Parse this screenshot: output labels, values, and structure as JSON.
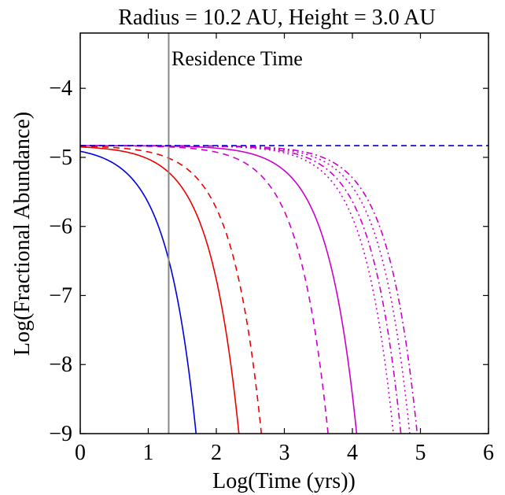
{
  "chart_data": {
    "type": "line",
    "title": "Radius = 10.2 AU, Height = 3.0 AU",
    "xlabel": "Log(Time (yrs))",
    "ylabel": "Log(Fractional Abundance)",
    "xlim": [
      0,
      6
    ],
    "ylim": [
      -9,
      -3.2
    ],
    "xticks": [
      "0",
      "1",
      "2",
      "3",
      "4",
      "5",
      "6"
    ],
    "yticks": [
      "−4",
      "−5",
      "−6",
      "−7",
      "−8",
      "−9"
    ],
    "grid": false,
    "legend": "none",
    "annotations": [
      {
        "text": "Residence Time",
        "x": 1.3,
        "y": -3.5
      }
    ],
    "vline": {
      "x": 1.3,
      "color": "#888888"
    },
    "hline": {
      "y": -4.83,
      "color": "#0000cc",
      "style": "dashed"
    },
    "series": [
      {
        "color": "#0000dd",
        "style": "solid",
        "y0": -4.83,
        "tau": 0.72,
        "k": 1.0,
        "y_at_0": -4.91
      },
      {
        "color": "#ee0000",
        "style": "solid",
        "y0": -4.83,
        "tau": 1.35,
        "k": 1.0
      },
      {
        "color": "#ee0000",
        "style": "dashed",
        "y0": -4.83,
        "tau": 1.68,
        "k": 1.0
      },
      {
        "color": "#cc00cc",
        "style": "dashed",
        "y0": -4.83,
        "tau": 2.66,
        "k": 1.0
      },
      {
        "color": "#cc00cc",
        "style": "solid",
        "y0": -4.83,
        "tau": 3.08,
        "k": 1.0
      },
      {
        "color": "#cc00cc",
        "style": "dotted",
        "y0": -4.83,
        "tau": 3.62,
        "k": 1.0
      },
      {
        "color": "#cc00cc",
        "style": "dashdot",
        "y0": -4.83,
        "tau": 3.73,
        "k": 1.0
      },
      {
        "color": "#cc00cc",
        "style": "dotted",
        "y0": -4.83,
        "tau": 3.86,
        "k": 1.0
      },
      {
        "color": "#cc00cc",
        "style": "dashdot",
        "y0": -4.83,
        "tau": 3.97,
        "k": 1.0
      }
    ]
  }
}
